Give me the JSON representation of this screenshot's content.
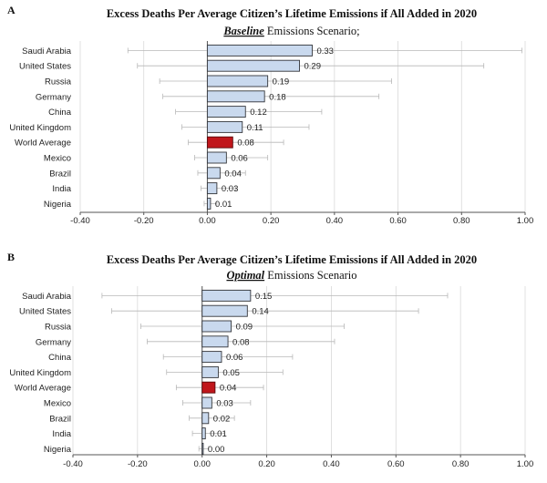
{
  "colors": {
    "bar_fill": "#c9d9ee",
    "bar_stroke": "#33353a",
    "highlight_fill": "#c0161b",
    "highlight_stroke": "#5a0a0c"
  },
  "chart_data": [
    {
      "panel": "A",
      "type": "bar",
      "orientation": "horizontal",
      "title": "Excess Deaths Per Average Citizen’s Lifetime Emissions if All Added in 2020",
      "subtitle_emphasis": "Baseline",
      "subtitle_rest": " Emissions Scenario;",
      "categories": [
        "Saudi Arabia",
        "United States",
        "Russia",
        "Germany",
        "China",
        "United Kingdom",
        "World Average",
        "Mexico",
        "Brazil",
        "India",
        "Nigeria"
      ],
      "values": [
        0.33,
        0.29,
        0.19,
        0.18,
        0.12,
        0.11,
        0.08,
        0.06,
        0.04,
        0.03,
        0.01
      ],
      "value_labels": [
        "0.33",
        "0.29",
        "0.19",
        "0.18",
        "0.12",
        "0.11",
        "0.08",
        "0.06",
        "0.04",
        "0.03",
        "0.01"
      ],
      "error_low": [
        -0.25,
        -0.22,
        -0.15,
        -0.14,
        -0.1,
        -0.08,
        -0.06,
        -0.04,
        -0.03,
        -0.02,
        -0.01
      ],
      "error_high": [
        0.99,
        0.87,
        0.58,
        0.54,
        0.36,
        0.32,
        0.24,
        0.19,
        0.12,
        0.09,
        0.03
      ],
      "highlight": "World Average",
      "xlim": [
        -0.4,
        1.0
      ],
      "xticks": [
        -0.4,
        -0.2,
        0.0,
        0.2,
        0.4,
        0.6,
        0.8,
        1.0
      ],
      "xtick_labels": [
        "-0.40",
        "-0.20",
        "0.00",
        "0.20",
        "0.40",
        "0.60",
        "0.80",
        "1.00"
      ],
      "grid": true
    },
    {
      "panel": "B",
      "type": "bar",
      "orientation": "horizontal",
      "title": "Excess Deaths Per Average Citizen’s Lifetime Emissions if All Added in 2020",
      "subtitle_emphasis": "Optimal",
      "subtitle_rest": " Emissions Scenario",
      "categories": [
        "Saudi Arabia",
        "United States",
        "Russia",
        "Germany",
        "China",
        "United Kingdom",
        "World Average",
        "Mexico",
        "Brazil",
        "India",
        "Nigeria"
      ],
      "values": [
        0.15,
        0.14,
        0.09,
        0.08,
        0.06,
        0.05,
        0.04,
        0.03,
        0.02,
        0.01,
        0.0
      ],
      "value_labels": [
        "0.15",
        "0.14",
        "0.09",
        "0.08",
        "0.06",
        "0.05",
        "0.04",
        "0.03",
        "0.02",
        "0.01",
        "0.00"
      ],
      "error_low": [
        -0.31,
        -0.28,
        -0.19,
        -0.17,
        -0.12,
        -0.11,
        -0.08,
        -0.06,
        -0.04,
        -0.03,
        -0.01
      ],
      "error_high": [
        0.76,
        0.67,
        0.44,
        0.41,
        0.28,
        0.25,
        0.19,
        0.15,
        0.1,
        0.07,
        0.02
      ],
      "highlight": "World Average",
      "xlim": [
        -0.4,
        1.0
      ],
      "xticks": [
        -0.4,
        -0.2,
        0.0,
        0.2,
        0.4,
        0.6,
        0.8,
        1.0
      ],
      "xtick_labels": [
        "-0.40",
        "-0.20",
        "0.00",
        "0.20",
        "0.40",
        "0.60",
        "0.80",
        "1.00"
      ],
      "grid": true
    }
  ]
}
